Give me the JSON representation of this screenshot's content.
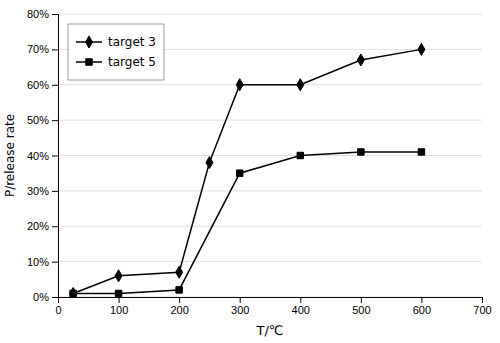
{
  "chart_data": {
    "type": "line",
    "xlabel": "T/℃",
    "ylabel": "P/release rate",
    "series": [
      {
        "name": "target 3",
        "color": "#000000",
        "marker": "diamond",
        "x": [
          25,
          100,
          200,
          250,
          300,
          400,
          500,
          600
        ],
        "values": [
          1,
          6,
          7,
          38,
          60,
          60,
          67,
          70
        ]
      },
      {
        "name": "target 5",
        "color": "#000000",
        "marker": "square",
        "x": [
          25,
          100,
          200,
          300,
          400,
          500,
          600
        ],
        "values": [
          1,
          1,
          2,
          35,
          40,
          41,
          41
        ]
      }
    ],
    "xlim": [
      0,
      700
    ],
    "ylim": [
      0,
      80
    ],
    "xticks": [
      0,
      100,
      200,
      300,
      400,
      500,
      600,
      700
    ],
    "yticks": [
      {
        "value": 0,
        "label": "0%"
      },
      {
        "value": 10,
        "label": "10%"
      },
      {
        "value": 20,
        "label": "20%"
      },
      {
        "value": 30,
        "label": "30%"
      },
      {
        "value": 40,
        "label": "40%"
      },
      {
        "value": 50,
        "label": "50%"
      },
      {
        "value": 60,
        "label": "60%"
      },
      {
        "value": 70,
        "label": "70%"
      },
      {
        "value": 80,
        "label": "80%"
      }
    ],
    "grid": "y",
    "legend": "upper left"
  }
}
